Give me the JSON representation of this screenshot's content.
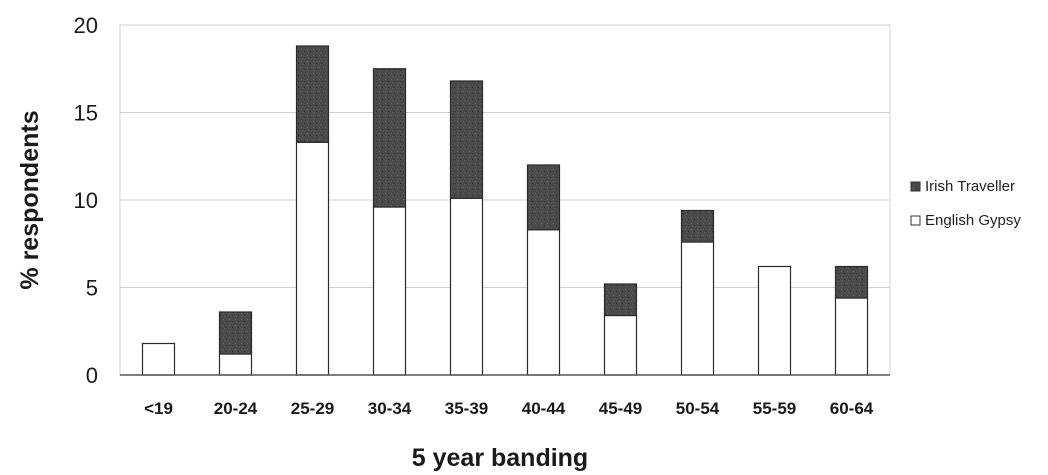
{
  "chart_data": {
    "type": "bar",
    "stacked": true,
    "categories": [
      "<19",
      "20-24",
      "25-29",
      "30-34",
      "35-39",
      "40-44",
      "45-49",
      "50-54",
      "55-59",
      "60-64"
    ],
    "series": [
      {
        "name": "English Gypsy",
        "values": [
          1.8,
          1.2,
          13.3,
          9.6,
          10.1,
          8.3,
          3.4,
          7.6,
          6.2,
          4.4
        ],
        "color": "#ffffff"
      },
      {
        "name": "Irish Traveller",
        "values": [
          0,
          2.4,
          5.5,
          7.9,
          6.7,
          3.7,
          1.8,
          1.8,
          0,
          1.8
        ],
        "color": "#4a4a4a"
      }
    ],
    "xlabel": "5 year banding",
    "ylabel": "% respondents",
    "ylim": [
      0,
      20
    ],
    "yticks": [
      0,
      5,
      10,
      15,
      20
    ],
    "grid": true,
    "legend_position": "right"
  }
}
